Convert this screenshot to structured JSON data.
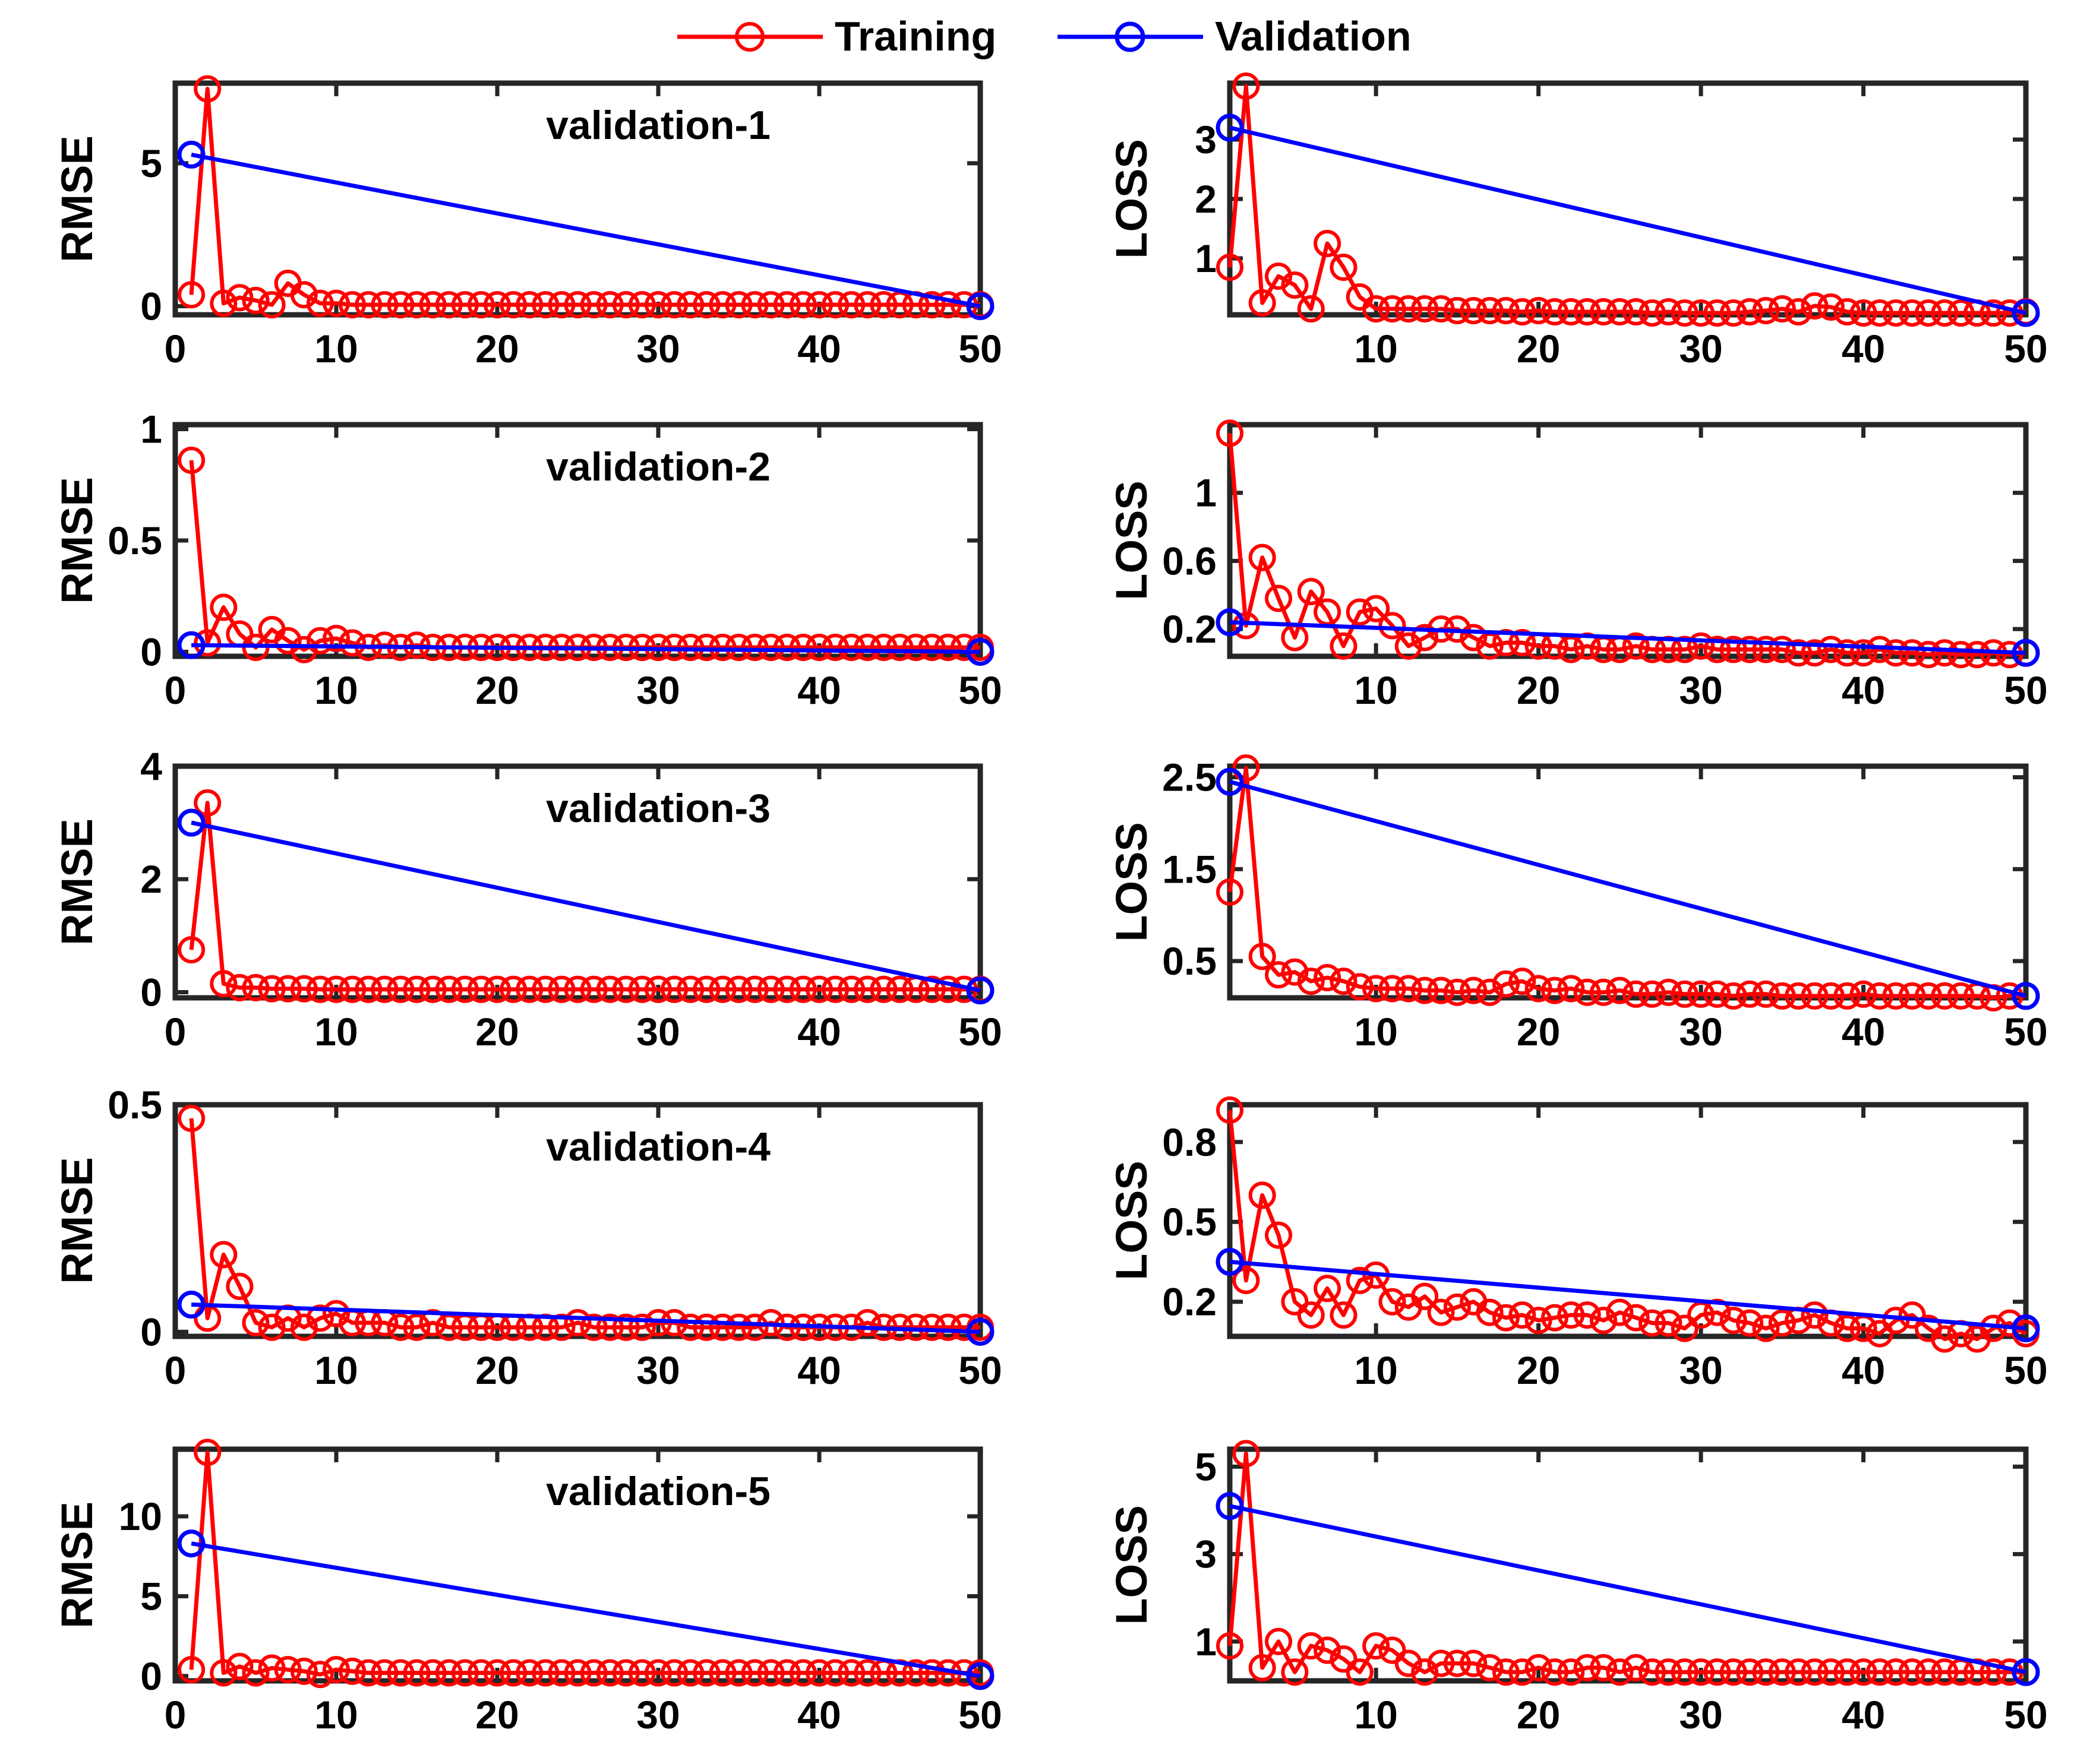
{
  "legend": {
    "training_label": "Training",
    "validation_label": "Validation",
    "training_color": "#ff0000",
    "validation_color": "#0000ff"
  },
  "chart_data": [
    {
      "id": "rmse-1",
      "type": "line",
      "ylabel": "RMSE",
      "annotation": "validation-1",
      "xlim": [
        0,
        50
      ],
      "ylim": [
        -0.3,
        7.8
      ],
      "xticks": [
        0,
        10,
        20,
        30,
        40,
        50
      ],
      "yticks": [
        0,
        5
      ],
      "yticklabels": [
        "0",
        "5"
      ],
      "series": [
        {
          "name": "Training",
          "x": "1..50",
          "values": [
            0.4,
            7.6,
            0.1,
            0.3,
            0.2,
            0.05,
            0.8,
            0.4,
            0.1,
            0.1,
            0.05,
            0.05,
            0.05,
            0.05,
            0.05,
            0.05,
            0.05,
            0.05,
            0.05,
            0.05,
            0.05,
            0.05,
            0.05,
            0.05,
            0.05,
            0.05,
            0.05,
            0.05,
            0.05,
            0.05,
            0.05,
            0.05,
            0.05,
            0.05,
            0.05,
            0.05,
            0.05,
            0.05,
            0.05,
            0.05,
            0.05,
            0.05,
            0.05,
            0.05,
            0.05,
            0.05,
            0.05,
            0.05,
            0.05,
            0.05
          ]
        },
        {
          "name": "Validation",
          "x": [
            1,
            50
          ],
          "values": [
            5.3,
            0.0
          ]
        }
      ]
    },
    {
      "id": "loss-1",
      "type": "line",
      "ylabel": "LOSS",
      "xlim": [
        1,
        50
      ],
      "ylim": [
        0.05,
        3.95
      ],
      "xticks": [
        10,
        20,
        30,
        40,
        50
      ],
      "yticks": [
        1,
        2,
        3
      ],
      "yticklabels": [
        "1",
        "2",
        "3"
      ],
      "series": [
        {
          "name": "Training",
          "x": "1..50",
          "values": [
            0.85,
            3.9,
            0.25,
            0.7,
            0.55,
            0.15,
            1.25,
            0.85,
            0.35,
            0.15,
            0.15,
            0.15,
            0.15,
            0.15,
            0.12,
            0.12,
            0.12,
            0.12,
            0.1,
            0.12,
            0.1,
            0.1,
            0.1,
            0.1,
            0.1,
            0.1,
            0.08,
            0.1,
            0.08,
            0.08,
            0.08,
            0.08,
            0.1,
            0.12,
            0.15,
            0.1,
            0.2,
            0.18,
            0.1,
            0.08,
            0.08,
            0.08,
            0.08,
            0.08,
            0.08,
            0.08,
            0.08,
            0.08,
            0.08,
            0.1
          ]
        },
        {
          "name": "Validation",
          "x": [
            1,
            50
          ],
          "values": [
            3.2,
            0.08
          ]
        }
      ]
    },
    {
      "id": "rmse-2",
      "type": "line",
      "ylabel": "RMSE",
      "annotation": "validation-2",
      "xlim": [
        0,
        50
      ],
      "ylim": [
        -0.02,
        1.02
      ],
      "xticks": [
        0,
        10,
        20,
        30,
        40,
        50
      ],
      "yticks": [
        0,
        0.5,
        1
      ],
      "yticklabels": [
        "0",
        "0.5",
        "1"
      ],
      "series": [
        {
          "name": "Training",
          "x": "1..50",
          "values": [
            0.86,
            0.04,
            0.2,
            0.08,
            0.02,
            0.1,
            0.05,
            0.01,
            0.05,
            0.06,
            0.04,
            0.02,
            0.03,
            0.02,
            0.03,
            0.02,
            0.02,
            0.02,
            0.02,
            0.02,
            0.02,
            0.02,
            0.02,
            0.02,
            0.02,
            0.02,
            0.02,
            0.02,
            0.02,
            0.02,
            0.02,
            0.02,
            0.02,
            0.02,
            0.02,
            0.02,
            0.02,
            0.02,
            0.02,
            0.02,
            0.02,
            0.02,
            0.02,
            0.02,
            0.02,
            0.02,
            0.02,
            0.02,
            0.02,
            0.02
          ]
        },
        {
          "name": "Validation",
          "x": [
            1,
            50
          ],
          "values": [
            0.03,
            0.0
          ]
        }
      ]
    },
    {
      "id": "loss-2",
      "type": "line",
      "ylabel": "LOSS",
      "xlim": [
        1,
        50
      ],
      "ylim": [
        0.04,
        1.4
      ],
      "xticks": [
        10,
        20,
        30,
        40,
        50
      ],
      "yticks": [
        0.2,
        0.6,
        1
      ],
      "yticklabels": [
        "0.2",
        "0.6",
        "1"
      ],
      "series": [
        {
          "name": "Training",
          "x": "1..50",
          "values": [
            1.35,
            0.22,
            0.62,
            0.38,
            0.15,
            0.42,
            0.3,
            0.1,
            0.3,
            0.32,
            0.22,
            0.1,
            0.15,
            0.2,
            0.2,
            0.15,
            0.1,
            0.12,
            0.12,
            0.1,
            0.1,
            0.08,
            0.1,
            0.08,
            0.08,
            0.1,
            0.08,
            0.08,
            0.08,
            0.1,
            0.08,
            0.08,
            0.08,
            0.08,
            0.08,
            0.06,
            0.06,
            0.08,
            0.06,
            0.06,
            0.08,
            0.06,
            0.06,
            0.05,
            0.06,
            0.05,
            0.05,
            0.06,
            0.05,
            0.06
          ]
        },
        {
          "name": "Validation",
          "x": [
            1,
            50
          ],
          "values": [
            0.24,
            0.06
          ]
        }
      ]
    },
    {
      "id": "rmse-3",
      "type": "line",
      "ylabel": "RMSE",
      "annotation": "validation-3",
      "xlim": [
        0,
        50
      ],
      "ylim": [
        -0.1,
        4.0
      ],
      "xticks": [
        0,
        10,
        20,
        30,
        40,
        50
      ],
      "yticks": [
        0,
        2,
        4
      ],
      "yticklabels": [
        "0",
        "2",
        "4"
      ],
      "series": [
        {
          "name": "Training",
          "x": "1..50",
          "values": [
            0.75,
            3.35,
            0.15,
            0.08,
            0.08,
            0.06,
            0.06,
            0.06,
            0.05,
            0.05,
            0.05,
            0.05,
            0.05,
            0.05,
            0.05,
            0.05,
            0.05,
            0.05,
            0.05,
            0.05,
            0.05,
            0.05,
            0.05,
            0.05,
            0.05,
            0.05,
            0.05,
            0.05,
            0.05,
            0.05,
            0.05,
            0.05,
            0.05,
            0.05,
            0.05,
            0.05,
            0.05,
            0.05,
            0.05,
            0.05,
            0.05,
            0.05,
            0.05,
            0.05,
            0.05,
            0.05,
            0.05,
            0.05,
            0.05,
            0.05
          ]
        },
        {
          "name": "Validation",
          "x": [
            1,
            50
          ],
          "values": [
            3.0,
            0.03
          ]
        }
      ]
    },
    {
      "id": "loss-3",
      "type": "line",
      "ylabel": "LOSS",
      "xlim": [
        1,
        50
      ],
      "ylim": [
        0.1,
        2.62
      ],
      "xticks": [
        10,
        20,
        30,
        40,
        50
      ],
      "yticks": [
        0.5,
        1.5,
        2.5
      ],
      "yticklabels": [
        "0.5",
        "1.5",
        "2.5"
      ],
      "series": [
        {
          "name": "Training",
          "x": "1..50",
          "values": [
            1.25,
            2.6,
            0.55,
            0.35,
            0.38,
            0.28,
            0.32,
            0.28,
            0.22,
            0.2,
            0.2,
            0.2,
            0.18,
            0.18,
            0.16,
            0.18,
            0.16,
            0.25,
            0.28,
            0.2,
            0.18,
            0.2,
            0.16,
            0.16,
            0.18,
            0.14,
            0.14,
            0.16,
            0.14,
            0.14,
            0.14,
            0.12,
            0.14,
            0.14,
            0.12,
            0.12,
            0.12,
            0.12,
            0.12,
            0.14,
            0.12,
            0.12,
            0.12,
            0.12,
            0.12,
            0.12,
            0.12,
            0.1,
            0.12,
            0.12
          ]
        },
        {
          "name": "Validation",
          "x": [
            1,
            50
          ],
          "values": [
            2.45,
            0.12
          ]
        }
      ]
    },
    {
      "id": "rmse-4",
      "type": "line",
      "ylabel": "RMSE",
      "annotation": "validation-4",
      "xlim": [
        0,
        50
      ],
      "ylim": [
        -0.01,
        0.5
      ],
      "xticks": [
        0,
        10,
        20,
        30,
        40,
        50
      ],
      "yticks": [
        0,
        0.5
      ],
      "yticklabels": [
        "0",
        "0.5"
      ],
      "series": [
        {
          "name": "Training",
          "x": "1..50",
          "values": [
            0.47,
            0.03,
            0.17,
            0.1,
            0.02,
            0.01,
            0.03,
            0.01,
            0.03,
            0.04,
            0.02,
            0.02,
            0.02,
            0.01,
            0.01,
            0.02,
            0.01,
            0.01,
            0.01,
            0.01,
            0.01,
            0.01,
            0.01,
            0.01,
            0.02,
            0.01,
            0.01,
            0.01,
            0.01,
            0.02,
            0.02,
            0.01,
            0.01,
            0.01,
            0.01,
            0.01,
            0.02,
            0.01,
            0.01,
            0.01,
            0.01,
            0.01,
            0.02,
            0.01,
            0.01,
            0.01,
            0.01,
            0.01,
            0.01,
            0.01
          ]
        },
        {
          "name": "Validation",
          "x": [
            1,
            50
          ],
          "values": [
            0.06,
            0.0
          ]
        }
      ]
    },
    {
      "id": "loss-4",
      "type": "line",
      "ylabel": "LOSS",
      "xlim": [
        1,
        50
      ],
      "ylim": [
        0.07,
        0.94
      ],
      "xticks": [
        10,
        20,
        30,
        40,
        50
      ],
      "yticks": [
        0.2,
        0.5,
        0.8
      ],
      "yticklabels": [
        "0.2",
        "0.5",
        "0.8"
      ],
      "series": [
        {
          "name": "Training",
          "x": "1..50",
          "values": [
            0.92,
            0.28,
            0.6,
            0.45,
            0.2,
            0.15,
            0.25,
            0.15,
            0.28,
            0.3,
            0.2,
            0.18,
            0.22,
            0.16,
            0.18,
            0.2,
            0.16,
            0.14,
            0.15,
            0.13,
            0.14,
            0.15,
            0.15,
            0.13,
            0.16,
            0.14,
            0.12,
            0.12,
            0.1,
            0.15,
            0.16,
            0.13,
            0.12,
            0.1,
            0.12,
            0.13,
            0.15,
            0.12,
            0.1,
            0.1,
            0.08,
            0.13,
            0.15,
            0.1,
            0.06,
            0.08,
            0.06,
            0.1,
            0.12,
            0.08
          ]
        },
        {
          "name": "Validation",
          "x": [
            1,
            50
          ],
          "values": [
            0.35,
            0.1
          ]
        }
      ]
    },
    {
      "id": "rmse-5",
      "type": "line",
      "ylabel": "RMSE",
      "annotation": "validation-5",
      "xlim": [
        0,
        50
      ],
      "ylim": [
        -0.3,
        14.2
      ],
      "xticks": [
        0,
        10,
        20,
        30,
        40,
        50
      ],
      "yticks": [
        0,
        5,
        10
      ],
      "yticklabels": [
        "0",
        "5",
        "10"
      ],
      "series": [
        {
          "name": "Training",
          "x": "1..50",
          "values": [
            0.4,
            14.0,
            0.2,
            0.6,
            0.2,
            0.5,
            0.4,
            0.3,
            0.1,
            0.4,
            0.3,
            0.2,
            0.2,
            0.2,
            0.2,
            0.2,
            0.2,
            0.2,
            0.2,
            0.2,
            0.2,
            0.2,
            0.2,
            0.2,
            0.2,
            0.2,
            0.2,
            0.2,
            0.2,
            0.2,
            0.2,
            0.2,
            0.2,
            0.2,
            0.2,
            0.2,
            0.2,
            0.2,
            0.2,
            0.2,
            0.2,
            0.2,
            0.2,
            0.2,
            0.2,
            0.2,
            0.2,
            0.2,
            0.2,
            0.2
          ]
        },
        {
          "name": "Validation",
          "x": [
            1,
            50
          ],
          "values": [
            8.3,
            0.0
          ]
        }
      ]
    },
    {
      "id": "loss-5",
      "type": "line",
      "ylabel": "LOSS",
      "xlim": [
        1,
        50
      ],
      "ylim": [
        0.1,
        5.4
      ],
      "xticks": [
        10,
        20,
        30,
        40,
        50
      ],
      "yticks": [
        1,
        3,
        5
      ],
      "yticklabels": [
        "1",
        "3",
        "5"
      ],
      "series": [
        {
          "name": "Training",
          "x": "1..50",
          "values": [
            0.9,
            5.3,
            0.4,
            1.0,
            0.3,
            0.9,
            0.8,
            0.6,
            0.3,
            0.9,
            0.8,
            0.5,
            0.3,
            0.5,
            0.5,
            0.5,
            0.4,
            0.3,
            0.3,
            0.4,
            0.3,
            0.3,
            0.4,
            0.4,
            0.3,
            0.4,
            0.3,
            0.3,
            0.3,
            0.3,
            0.3,
            0.3,
            0.3,
            0.3,
            0.3,
            0.3,
            0.3,
            0.3,
            0.3,
            0.3,
            0.3,
            0.3,
            0.3,
            0.3,
            0.3,
            0.3,
            0.3,
            0.3,
            0.3,
            0.3
          ]
        },
        {
          "name": "Validation",
          "x": [
            1,
            50
          ],
          "values": [
            4.1,
            0.3
          ]
        }
      ]
    }
  ]
}
